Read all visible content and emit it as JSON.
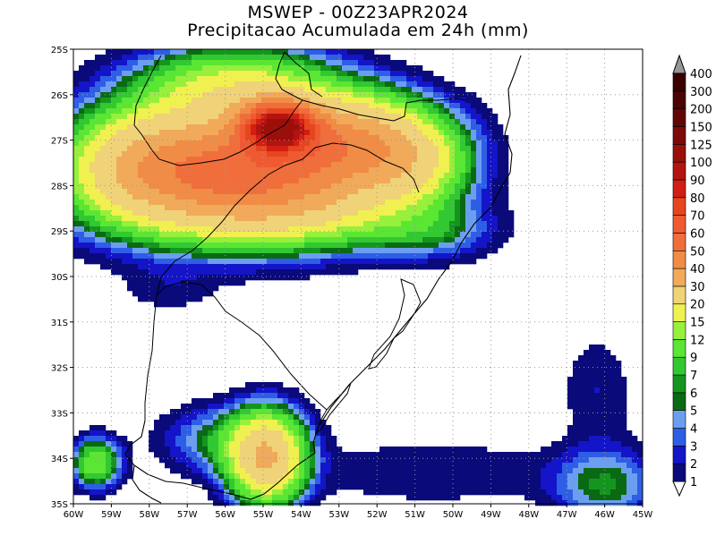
{
  "title": "MSWEP - 00Z23APR2024",
  "subtitle": "Precipitacao Acumulada em 24h (mm)",
  "map": {
    "lon_range": [
      -60,
      -45
    ],
    "lat_range": [
      -35,
      -25
    ],
    "x_ticks": [
      "60W",
      "59W",
      "58W",
      "57W",
      "56W",
      "55W",
      "54W",
      "53W",
      "52W",
      "51W",
      "50W",
      "49W",
      "48W",
      "47W",
      "46W",
      "45W"
    ],
    "y_ticks": [
      "25S",
      "26S",
      "27S",
      "28S",
      "29S",
      "30S",
      "31S",
      "32S",
      "33S",
      "34S",
      "35S"
    ],
    "grid": "dotted"
  },
  "legend": {
    "labels": [
      "1",
      "2",
      "3",
      "4",
      "5",
      "6",
      "7",
      "9",
      "12",
      "15",
      "20",
      "30",
      "40",
      "50",
      "60",
      "70",
      "80",
      "90",
      "100",
      "125",
      "150",
      "200",
      "300",
      "400"
    ],
    "colors": [
      "#0a0a7a",
      "#1414c8",
      "#2e5ee6",
      "#6c9ef0",
      "#0a6a14",
      "#14961e",
      "#32c832",
      "#5ae632",
      "#96f03c",
      "#f0f050",
      "#f0d278",
      "#f0aa5a",
      "#f08c46",
      "#f06e3c",
      "#f05a32",
      "#e6461e",
      "#d21e14",
      "#b4140f",
      "#9b0f0a",
      "#7d0a0a",
      "#640505",
      "#4b0303",
      "#3a0101",
      "#969696"
    ]
  },
  "chart_data": {
    "type": "heatmap",
    "title": "MSWEP - 00Z23APR2024",
    "subtitle": "Precipitacao Acumulada em 24h (mm)",
    "units": "mm",
    "levels": [
      1,
      2,
      3,
      4,
      5,
      6,
      7,
      9,
      12,
      15,
      20,
      30,
      40,
      50,
      60,
      70,
      80,
      90,
      100,
      125,
      150,
      200,
      300,
      400
    ],
    "precip_areas": [
      {
        "lon": -55.8,
        "lat": -27.7,
        "sx": 3.3,
        "sy": 1.2,
        "peak": 55
      },
      {
        "lon": -54.6,
        "lat": -26.7,
        "sx": 0.9,
        "sy": 0.5,
        "peak": 80
      },
      {
        "lon": -52.6,
        "lat": -27.0,
        "sx": 2.0,
        "sy": 0.9,
        "peak": 30
      },
      {
        "lon": -51.0,
        "lat": -27.6,
        "sx": 1.3,
        "sy": 0.8,
        "peak": 12
      },
      {
        "lon": -58.3,
        "lat": -27.5,
        "sx": 1.5,
        "sy": 1.1,
        "peak": 9
      },
      {
        "lon": -55.7,
        "lat": -25.8,
        "sx": 2.4,
        "sy": 0.8,
        "peak": 15
      },
      {
        "lon": -53.5,
        "lat": -28.6,
        "sx": 2.6,
        "sy": 0.7,
        "peak": 7
      },
      {
        "lon": -50.6,
        "lat": -29.0,
        "sx": 1.6,
        "sy": 0.6,
        "peak": 5
      },
      {
        "lon": -54.9,
        "lat": -34.0,
        "sx": 0.9,
        "sy": 0.9,
        "peak": 30
      },
      {
        "lon": -56.0,
        "lat": -33.6,
        "sx": 1.5,
        "sy": 0.7,
        "peak": 6
      },
      {
        "lon": -59.4,
        "lat": -34.1,
        "sx": 0.6,
        "sy": 0.5,
        "peak": 12
      },
      {
        "lon": -46.0,
        "lat": -34.6,
        "sx": 1.3,
        "sy": 0.8,
        "peak": 6
      },
      {
        "lon": -50.5,
        "lat": -34.3,
        "sx": 3.3,
        "sy": 0.7,
        "peak": 2
      },
      {
        "lon": -46.2,
        "lat": -32.5,
        "sx": 0.9,
        "sy": 1.2,
        "peak": 2
      },
      {
        "lon": -57.5,
        "lat": -30.3,
        "sx": 1.2,
        "sy": 0.5,
        "peak": 1.5
      }
    ]
  }
}
